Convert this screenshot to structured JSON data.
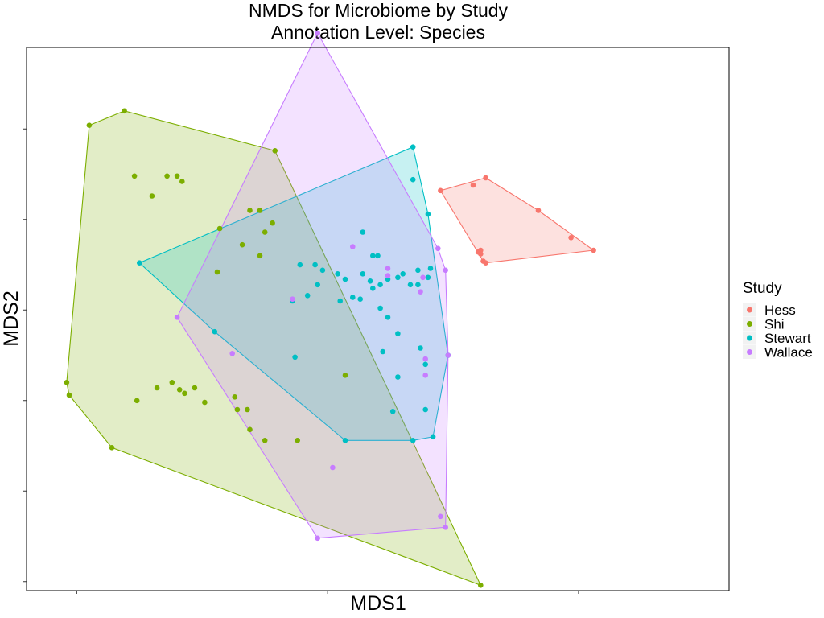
{
  "chart_data": {
    "type": "scatter",
    "title": "NMDS for Microbiome by Study",
    "subtitle": "Annotation Level: Species",
    "xlabel": "MDS1",
    "ylabel": "MDS2",
    "xlim": [
      -1.2,
      1.6
    ],
    "ylim": [
      -1.55,
      1.45
    ],
    "grid": false,
    "hulls": true,
    "legend": {
      "title": "Study",
      "position": "right"
    },
    "series": [
      {
        "name": "Hess",
        "color": "#F8766D",
        "points": [
          [
            0.58,
            0.69
          ],
          [
            0.63,
            0.73
          ],
          [
            0.84,
            0.55
          ],
          [
            0.97,
            0.4
          ],
          [
            1.06,
            0.33
          ],
          [
            0.45,
            0.66
          ],
          [
            0.6,
            0.32
          ],
          [
            0.61,
            0.33
          ],
          [
            0.61,
            0.31
          ],
          [
            0.62,
            0.27
          ],
          [
            0.63,
            0.26
          ]
        ]
      },
      {
        "name": "Shi",
        "color": "#7CAE00",
        "points": [
          [
            -0.95,
            1.02
          ],
          [
            -0.81,
            1.1
          ],
          [
            -0.77,
            0.74
          ],
          [
            -0.7,
            0.63
          ],
          [
            -0.64,
            0.74
          ],
          [
            -0.6,
            0.74
          ],
          [
            -0.58,
            0.71
          ],
          [
            -0.21,
            0.88
          ],
          [
            -0.31,
            0.55
          ],
          [
            -0.27,
            0.55
          ],
          [
            -0.22,
            0.48
          ],
          [
            -0.25,
            0.43
          ],
          [
            -0.43,
            0.45
          ],
          [
            -0.34,
            0.36
          ],
          [
            -0.27,
            0.3
          ],
          [
            -0.44,
            0.21
          ],
          [
            -1.04,
            -0.4
          ],
          [
            -1.03,
            -0.47
          ],
          [
            -0.76,
            -0.5
          ],
          [
            -0.68,
            -0.43
          ],
          [
            -0.62,
            -0.4
          ],
          [
            -0.59,
            -0.44
          ],
          [
            -0.57,
            -0.46
          ],
          [
            -0.53,
            -0.43
          ],
          [
            -0.49,
            -0.51
          ],
          [
            -0.37,
            -0.48
          ],
          [
            -0.36,
            -0.55
          ],
          [
            -0.32,
            -0.55
          ],
          [
            -0.31,
            -0.66
          ],
          [
            -0.25,
            -0.72
          ],
          [
            -0.86,
            -0.76
          ],
          [
            -0.12,
            -0.72
          ],
          [
            0.07,
            -0.36
          ],
          [
            0.61,
            -1.52
          ]
        ]
      },
      {
        "name": "Stewart",
        "color": "#00BFC4",
        "points": [
          [
            -0.75,
            0.26
          ],
          [
            -0.45,
            -0.12
          ],
          [
            -0.14,
            0.05
          ],
          [
            -0.13,
            -0.26
          ],
          [
            -0.11,
            0.25
          ],
          [
            -0.05,
            0.25
          ],
          [
            -0.02,
            0.22
          ],
          [
            -0.04,
            0.14
          ],
          [
            -0.08,
            0.08
          ],
          [
            0.05,
            0.05
          ],
          [
            0.04,
            0.2
          ],
          [
            0.07,
            0.17
          ],
          [
            0.1,
            0.07
          ],
          [
            0.14,
            0.2
          ],
          [
            0.13,
            0.06
          ],
          [
            0.17,
            0.16
          ],
          [
            0.18,
            0.12
          ],
          [
            0.2,
            0.3
          ],
          [
            0.18,
            0.3
          ],
          [
            0.21,
            0.14
          ],
          [
            0.24,
            0.17
          ],
          [
            0.28,
            0.18
          ],
          [
            0.3,
            0.2
          ],
          [
            0.33,
            0.14
          ],
          [
            0.36,
            0.22
          ],
          [
            0.4,
            0.18
          ],
          [
            0.36,
            0.14
          ],
          [
            0.21,
            0.01
          ],
          [
            0.24,
            -0.04
          ],
          [
            0.28,
            -0.13
          ],
          [
            0.22,
            -0.23
          ],
          [
            0.28,
            -0.37
          ],
          [
            0.37,
            -0.21
          ],
          [
            0.48,
            -0.25
          ],
          [
            0.39,
            -0.3
          ],
          [
            0.41,
            0.23
          ],
          [
            0.26,
            -0.56
          ],
          [
            0.34,
            -0.72
          ],
          [
            0.07,
            -0.72
          ],
          [
            0.14,
            0.43
          ],
          [
            0.34,
            0.72
          ],
          [
            0.4,
            0.53
          ],
          [
            0.34,
            0.9
          ],
          [
            0.39,
            -0.55
          ],
          [
            0.42,
            -0.7
          ]
        ]
      },
      {
        "name": "Wallace",
        "color": "#C77CFF",
        "points": [
          [
            -0.04,
            1.53
          ],
          [
            -0.6,
            -0.04
          ],
          [
            -0.38,
            -0.24
          ],
          [
            -0.14,
            0.06
          ],
          [
            0.1,
            0.35
          ],
          [
            0.24,
            0.19
          ],
          [
            0.24,
            0.23
          ],
          [
            0.37,
            0.1
          ],
          [
            0.38,
            0.18
          ],
          [
            0.39,
            -0.36
          ],
          [
            0.39,
            -0.27
          ],
          [
            0.44,
            0.34
          ],
          [
            0.47,
            0.22
          ],
          [
            0.48,
            -0.25
          ],
          [
            0.02,
            -0.87
          ],
          [
            0.45,
            -1.14
          ],
          [
            -0.04,
            -1.26
          ],
          [
            0.47,
            -1.2
          ]
        ]
      }
    ]
  }
}
